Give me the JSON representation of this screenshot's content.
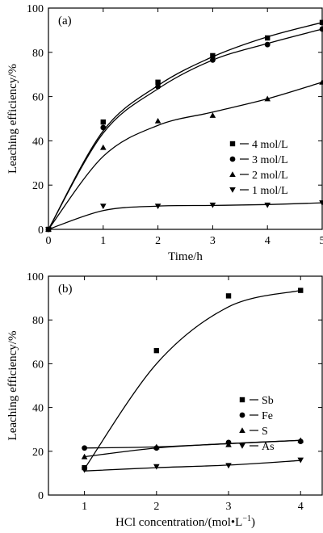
{
  "chart_data": [
    {
      "type": "scatter",
      "panel_label": "(a)",
      "xlabel": "Time/h",
      "ylabel": "Leaching efficiency/%",
      "xlim": [
        0,
        5
      ],
      "ylim": [
        0,
        100
      ],
      "x_ticks": [
        0,
        1,
        2,
        3,
        4,
        5
      ],
      "y_ticks": [
        0,
        20,
        40,
        60,
        80,
        100
      ],
      "legend_position": "right",
      "series": [
        {
          "name": "4 mol/L",
          "marker": "square",
          "x": [
            0,
            1,
            2,
            3,
            4,
            5
          ],
          "y": [
            0,
            48.5,
            66.5,
            78.5,
            86.5,
            93.5
          ],
          "fit": [
            0,
            44.5,
            65,
            78,
            87,
            93.5
          ]
        },
        {
          "name": "3 mol/L",
          "marker": "circle",
          "x": [
            0,
            1,
            2,
            3,
            4,
            5
          ],
          "y": [
            0,
            46,
            64.5,
            76.5,
            83.5,
            90.5
          ],
          "fit": [
            0,
            43.5,
            63.5,
            76.5,
            84,
            90.5
          ]
        },
        {
          "name": "2 mol/L",
          "marker": "triangle-up",
          "x": [
            0,
            1,
            2,
            3,
            4,
            5
          ],
          "y": [
            0,
            37,
            49,
            51.5,
            59,
            66.5
          ],
          "fit": [
            0,
            33,
            47,
            53,
            59,
            66.5
          ]
        },
        {
          "name": "1 mol/L",
          "marker": "triangle-down",
          "x": [
            0,
            1,
            2,
            3,
            4,
            5
          ],
          "y": [
            0,
            10.5,
            10.5,
            11,
            11,
            12
          ],
          "fit": [
            0,
            8.5,
            10.5,
            10.8,
            11.2,
            12
          ]
        }
      ]
    },
    {
      "type": "scatter",
      "panel_label": "(b)",
      "xlabel": "HCl concentration/(mol•L",
      "xlabel_sup": "−1",
      "xlabel_end": ")",
      "ylabel": "Leaching efficiency/%",
      "xlim": [
        0.5,
        4.3
      ],
      "ylim": [
        0,
        100
      ],
      "x_ticks": [
        1,
        2,
        3,
        4
      ],
      "y_ticks": [
        0,
        20,
        40,
        60,
        80,
        100
      ],
      "legend_position": "right",
      "series": [
        {
          "name": "Sb",
          "marker": "square",
          "x": [
            1,
            2,
            3,
            4
          ],
          "y": [
            12.5,
            66,
            91,
            93.5
          ],
          "fit": [
            12,
            60,
            86,
            93.5
          ]
        },
        {
          "name": "Fe",
          "marker": "circle",
          "x": [
            1,
            2,
            3,
            4
          ],
          "y": [
            21.5,
            21.5,
            24,
            24.5
          ],
          "fit": [
            21.5,
            22,
            23.5,
            25
          ]
        },
        {
          "name": "S",
          "marker": "triangle-up",
          "x": [
            1,
            2,
            3,
            4
          ],
          "y": [
            17.5,
            22,
            23,
            25
          ],
          "fit": [
            17.5,
            21.5,
            23.5,
            25
          ]
        },
        {
          "name": "As",
          "marker": "triangle-down",
          "x": [
            1,
            2,
            3,
            4
          ],
          "y": [
            11.5,
            13,
            13.5,
            16
          ],
          "fit": [
            11,
            12.5,
            13.7,
            15.8
          ]
        }
      ]
    }
  ]
}
